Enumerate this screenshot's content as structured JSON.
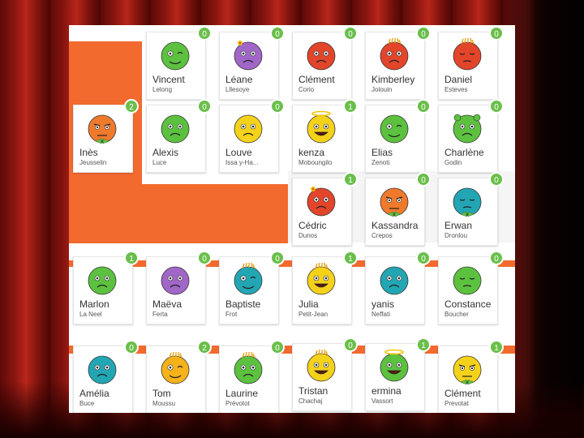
{
  "students": [
    {
      "first": "Vincent",
      "last": "Lelong",
      "points": "0",
      "color": "#5cc13f",
      "expr": "wink",
      "acc": "none"
    },
    {
      "first": "Léane",
      "last": "Lllesoye",
      "points": "0",
      "color": "#a066c8",
      "expr": "sad",
      "acc": "flower"
    },
    {
      "first": "Clément",
      "last": "Corio",
      "points": "0",
      "color": "#e2452a",
      "expr": "sad",
      "acc": "none"
    },
    {
      "first": "Kimberley",
      "last": "Jolouin",
      "points": "0",
      "color": "#e2452a",
      "expr": "sad",
      "acc": "hair"
    },
    {
      "first": "Daniel",
      "last": "Esteves",
      "points": "0",
      "color": "#e2452a",
      "expr": "sleepy",
      "acc": "hair"
    },
    {
      "first": "Inès",
      "last": "Jeusselin",
      "points": "2",
      "color": "#f07a2c",
      "expr": "grumpy",
      "acc": "bow"
    },
    {
      "first": "Alexis",
      "last": "Luce",
      "points": "0",
      "color": "#5cc13f",
      "expr": "sad",
      "acc": "none"
    },
    {
      "first": "Louve",
      "last": "Issa y-Ha...",
      "points": "0",
      "color": "#f5d21a",
      "expr": "sad",
      "acc": "none"
    },
    {
      "first": "kenza",
      "last": "Moboungilo",
      "points": "1",
      "color": "#f5d21a",
      "expr": "happy",
      "acc": "halo"
    },
    {
      "first": "Elias",
      "last": "Zenoti",
      "points": "0",
      "color": "#5cc13f",
      "expr": "wink",
      "acc": "none"
    },
    {
      "first": "Charlène",
      "last": "Godin",
      "points": "0",
      "color": "#5cc13f",
      "expr": "sad",
      "acc": "bear"
    },
    {
      "first": "Cédric",
      "last": "Dunos",
      "points": "1",
      "color": "#e2452a",
      "expr": "sad",
      "acc": "flower"
    },
    {
      "first": "Kassandra",
      "last": "Crepos",
      "points": "0",
      "color": "#f07a2c",
      "expr": "grumpy",
      "acc": "bow"
    },
    {
      "first": "Erwan",
      "last": "Dronlou",
      "points": "0",
      "color": "#22a6b3",
      "expr": "sleepy",
      "acc": "bow"
    },
    {
      "first": "Marlon",
      "last": "La Neel",
      "points": "1",
      "color": "#5cc13f",
      "expr": "sad",
      "acc": "none"
    },
    {
      "first": "Maëva",
      "last": "Ferta",
      "points": "0",
      "color": "#a066c8",
      "expr": "sad",
      "acc": "none"
    },
    {
      "first": "Baptiste",
      "last": "Frot",
      "points": "0",
      "color": "#22a6b3",
      "expr": "wink",
      "acc": "hair"
    },
    {
      "first": "Julia",
      "last": "Petit-Jean",
      "points": "1",
      "color": "#f5d21a",
      "expr": "happy",
      "acc": "hair"
    },
    {
      "first": "yanis",
      "last": "Neffati",
      "points": "0",
      "color": "#22a6b3",
      "expr": "sad",
      "acc": "none"
    },
    {
      "first": "Constance",
      "last": "Boucher",
      "points": "0",
      "color": "#5cc13f",
      "expr": "sleepy",
      "acc": "none"
    },
    {
      "first": "Amélia",
      "last": "Buce",
      "points": "0",
      "color": "#22a6b3",
      "expr": "sad",
      "acc": "none"
    },
    {
      "first": "Tom",
      "last": "Moussu",
      "points": "2",
      "color": "#f5b21a",
      "expr": "wink",
      "acc": "hair"
    },
    {
      "first": "Laurine",
      "last": "Prévotot",
      "points": "0",
      "color": "#5cc13f",
      "expr": "sad",
      "acc": "hair"
    },
    {
      "first": "Tristan",
      "last": "Chachaj",
      "points": "0",
      "color": "#f5d21a",
      "expr": "happy",
      "acc": "hair"
    },
    {
      "first": "ermina",
      "last": "Vassort",
      "points": "1",
      "color": "#5cc13f",
      "expr": "happy",
      "acc": "halo"
    },
    {
      "first": "Clément",
      "last": "Prevotat",
      "points": "1",
      "color": "#f5d21a",
      "expr": "grumpy",
      "acc": "bow"
    }
  ]
}
